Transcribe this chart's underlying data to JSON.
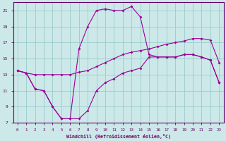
{
  "xlabel": "Windchill (Refroidissement éolien,°C)",
  "background_color": "#cce8e8",
  "line_color": "#990099",
  "grid_color": "#99cccc",
  "xlim": [
    -0.5,
    23.5
  ],
  "ylim": [
    7,
    22
  ],
  "yticks": [
    7,
    9,
    11,
    13,
    15,
    17,
    19,
    21
  ],
  "xticks": [
    0,
    1,
    2,
    3,
    4,
    5,
    6,
    7,
    8,
    9,
    10,
    11,
    12,
    13,
    14,
    15,
    16,
    17,
    18,
    19,
    20,
    21,
    22,
    23
  ],
  "line1_x": [
    0,
    1,
    2,
    3,
    4,
    5,
    6,
    7,
    8,
    9,
    10,
    11,
    12,
    13,
    14,
    15,
    16,
    17,
    18,
    19,
    20,
    21,
    22,
    23
  ],
  "line1_y": [
    13.5,
    13.2,
    13.0,
    13.0,
    13.0,
    13.0,
    13.0,
    13.3,
    13.5,
    14.0,
    14.5,
    15.0,
    15.5,
    15.8,
    16.0,
    16.2,
    16.5,
    16.8,
    17.0,
    17.2,
    17.5,
    17.5,
    17.3,
    14.5
  ],
  "line2_x": [
    0,
    1,
    2,
    3,
    4,
    5,
    6,
    7,
    8,
    9,
    10,
    11,
    12,
    13,
    14,
    15,
    16,
    17,
    18,
    19,
    20,
    21,
    22,
    23
  ],
  "line2_y": [
    13.5,
    13.2,
    11.2,
    11.0,
    9.0,
    7.5,
    7.5,
    7.5,
    8.5,
    11.0,
    12.0,
    12.5,
    13.2,
    13.5,
    13.8,
    15.2,
    15.2,
    15.2,
    15.2,
    15.5,
    15.5,
    15.2,
    14.8,
    12.0
  ],
  "line3_x": [
    0,
    1,
    2,
    3,
    4,
    5,
    6,
    7,
    8,
    9,
    10,
    11,
    12,
    13,
    14,
    15,
    16,
    17,
    18,
    19,
    20,
    21,
    22,
    23
  ],
  "line3_y": [
    13.5,
    13.2,
    11.2,
    11.0,
    9.0,
    7.5,
    7.5,
    16.2,
    19.0,
    21.0,
    21.2,
    21.0,
    21.0,
    21.5,
    20.2,
    15.5,
    15.2,
    15.2,
    15.2,
    15.5,
    15.5,
    15.2,
    14.8,
    12.0
  ]
}
